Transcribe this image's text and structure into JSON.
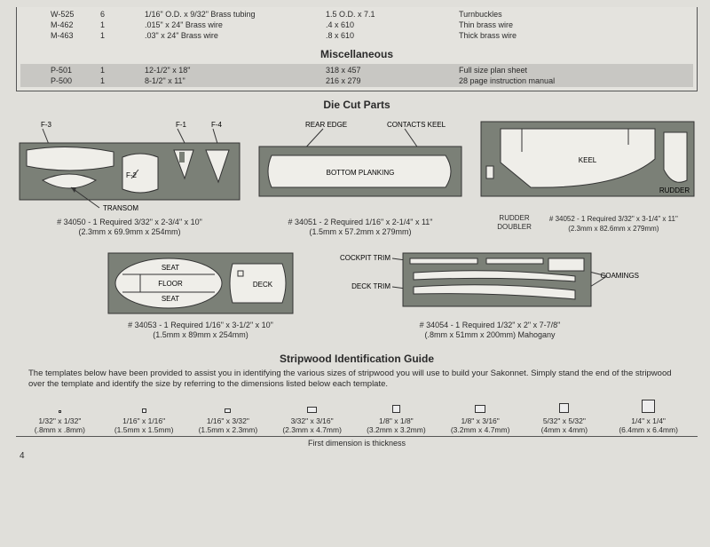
{
  "top_table": {
    "rows": [
      {
        "pn": "W-525",
        "qty": "6",
        "desc": "1/16\" O.D. x 9/32\" Brass tubing",
        "metric": "1.5 O.D. x 7.1",
        "name": "Turnbuckles"
      },
      {
        "pn": "M-462",
        "qty": "1",
        "desc": ".015\" x 24\" Brass wire",
        "metric": ".4 x 610",
        "name": "Thin brass wire"
      },
      {
        "pn": "M-463",
        "qty": "1",
        "desc": ".03\" x 24\" Brass wire",
        "metric": ".8 x 610",
        "name": "Thick brass wire"
      }
    ]
  },
  "misc": {
    "title": "Miscellaneous",
    "rows": [
      {
        "pn": "P-501",
        "qty": "1",
        "desc": "12-1/2\" x 18\"",
        "metric": "318 x 457",
        "name": "Full size plan sheet"
      },
      {
        "pn": "P-500",
        "qty": "1",
        "desc": "8-1/2\" x 11\"",
        "metric": "216 x 279",
        "name": "28 page instruction manual"
      }
    ]
  },
  "diecut": {
    "title": "Die Cut Parts",
    "d1": {
      "labels": {
        "f3": "F-3",
        "f1": "F-1",
        "f4": "F-4",
        "f2": "F-2",
        "transom": "TRANSOM"
      },
      "caption1": "# 34050 - 1 Required 3/32\" x 2-3/4\" x 10\"",
      "caption2": "(2.3mm x 69.9mm x 254mm)"
    },
    "d2": {
      "labels": {
        "rear": "REAR EDGE",
        "contacts": "CONTACTS KEEL",
        "bottom": "BOTTOM PLANKING"
      },
      "caption1": "# 34051 - 2 Required 1/16\" x 2-1/4\" x 11\"",
      "caption2": "(1.5mm x 57.2mm x 279mm)"
    },
    "d3": {
      "labels": {
        "keel": "KEEL",
        "rudder": "RUDDER",
        "rd": "RUDDER\nDOUBLER"
      },
      "caption1": "# 34052 - 1 Required 3/32\" x 3-1/4\" x 11\"",
      "caption2": "(2.3mm x 82.6mm x 279mm)"
    },
    "d4": {
      "labels": {
        "seat": "SEAT",
        "floor": "FLOOR",
        "deck": "DECK"
      },
      "caption1": "# 34053 - 1 Required 1/16\" x 3-1/2\" x 10\"",
      "caption2": "(1.5mm x 89mm x 254mm)"
    },
    "d5": {
      "labels": {
        "cockpit": "COCKPIT TRIM",
        "decktrim": "DECK TRIM",
        "coamings": "COAMINGS"
      },
      "caption1": "# 34054 - 1 Required 1/32\" x 2\" x 7-7/8\"",
      "caption2": "(.8mm x 51mm x 200mm) Mahogany"
    }
  },
  "stripwood": {
    "title": "Stripwood Identification Guide",
    "text": "    The templates below have been provided to assist you in identifying the various sizes of stripwood you will use to build your Sakonnet.  Simply stand the end of the stripwood over the template and identify the size by referring to the dimensions listed below each template.",
    "items": [
      {
        "w": 3,
        "h": 3,
        "l1": "1/32\" x 1/32\"",
        "l2": "(.8mm x .8mm)"
      },
      {
        "w": 5,
        "h": 5,
        "l1": "1/16\" x 1/16\"",
        "l2": "(1.5mm x 1.5mm)"
      },
      {
        "w": 7,
        "h": 5,
        "l1": "1/16\" x 3/32\"",
        "l2": "(1.5mm x 2.3mm)"
      },
      {
        "w": 11,
        "h": 7,
        "l1": "3/32\" x 3/16\"",
        "l2": "(2.3mm x 4.7mm)"
      },
      {
        "w": 9,
        "h": 9,
        "l1": "1/8\" x 1/8\"",
        "l2": "(3.2mm x 3.2mm)"
      },
      {
        "w": 12,
        "h": 9,
        "l1": "1/8\" x 3/16\"",
        "l2": "(3.2mm x 4.7mm)"
      },
      {
        "w": 11,
        "h": 11,
        "l1": "5/32\" x 5/32\"",
        "l2": "(4mm x 4mm)"
      },
      {
        "w": 15,
        "h": 15,
        "l1": "1/4\" x 1/4\"",
        "l2": "(6.4mm x 6.4mm)"
      }
    ],
    "footnote": "First dimension is thickness"
  },
  "pagenum": "4"
}
